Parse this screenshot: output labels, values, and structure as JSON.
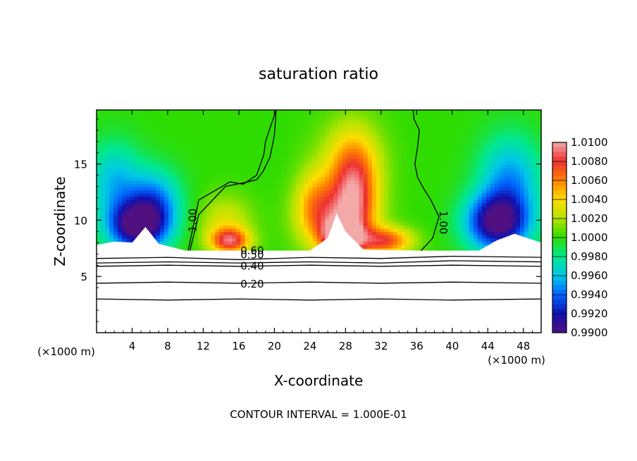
{
  "chart_data": {
    "type": "heatmap",
    "title": "saturation ratio",
    "xlabel": "X-coordinate",
    "ylabel": "Z-coordinate",
    "x_unit_left": "(×1000 m)",
    "x_unit_right": "(×1000 m)",
    "footer": "CONTOUR INTERVAL = 1.000E-01",
    "xlim": [
      0,
      50
    ],
    "ylim": [
      0,
      19.8
    ],
    "x_ticks": [
      "4",
      "8",
      "12",
      "16",
      "20",
      "24",
      "28",
      "32",
      "36",
      "40",
      "44",
      "48"
    ],
    "x_tick_values": [
      4,
      8,
      12,
      16,
      20,
      24,
      28,
      32,
      36,
      40,
      44,
      48
    ],
    "y_ticks": [
      "5",
      "10",
      "15"
    ],
    "y_tick_values": [
      5,
      10,
      15
    ],
    "colorbar": {
      "labels": [
        "1.0100",
        "1.0080",
        "1.0060",
        "1.0040",
        "1.0020",
        "1.0000",
        "0.9980",
        "0.9960",
        "0.9940",
        "0.9920",
        "0.9900"
      ],
      "values": [
        1.01,
        1.008,
        1.006,
        1.004,
        1.002,
        1.0,
        0.998,
        0.996,
        0.994,
        0.992,
        0.99
      ],
      "colors": [
        "#f4a9a9",
        "#ee3030",
        "#ff8000",
        "#ffdd00",
        "#b4e400",
        "#2edc00",
        "#00e890",
        "#00c8e8",
        "#0064ff",
        "#1010b0",
        "#501080"
      ]
    },
    "contours": [
      {
        "label": "1.00",
        "x": [
          10.5,
          11.5,
          14.5,
          17.0,
          18.0,
          18.7,
          19.5,
          20.0,
          20.2,
          19.0,
          18.8,
          18.0,
          16.5,
          15.0,
          11.5,
          10.3
        ],
        "y": [
          7.3,
          10.5,
          13.0,
          13.4,
          13.6,
          14.3,
          15.6,
          17.5,
          19.8,
          17.0,
          15.8,
          14.0,
          13.2,
          13.4,
          11.8,
          7.3
        ]
      },
      {
        "label": "1.00",
        "x": [
          36.5,
          37.8,
          38.5,
          37.6,
          36.8,
          36.1,
          35.8,
          36.1,
          36.3,
          35.7,
          35.6
        ],
        "y": [
          7.3,
          8.4,
          10.3,
          11.8,
          12.8,
          13.8,
          15.0,
          16.5,
          18.0,
          19.0,
          19.8
        ]
      },
      {
        "label": "0.60",
        "x": [
          0,
          8,
          16,
          24,
          32,
          40,
          50
        ],
        "y": [
          6.6,
          6.7,
          6.5,
          6.7,
          6.6,
          6.8,
          6.7
        ]
      },
      {
        "label": "0.50",
        "x": [
          0,
          8,
          16,
          24,
          32,
          40,
          50
        ],
        "y": [
          6.2,
          6.3,
          6.2,
          6.3,
          6.2,
          6.4,
          6.3
        ]
      },
      {
        "label": "0.40",
        "x": [
          0,
          8,
          16,
          24,
          32,
          40,
          50
        ],
        "y": [
          5.9,
          6.0,
          5.9,
          6.0,
          5.9,
          6.0,
          5.9
        ]
      },
      {
        "label": "0.20",
        "x": [
          0,
          8,
          16,
          24,
          32,
          40,
          50
        ],
        "y": [
          4.4,
          4.5,
          4.4,
          4.5,
          4.4,
          4.5,
          4.4
        ]
      },
      {
        "label": "",
        "x": [
          0,
          8,
          16,
          24,
          32,
          40,
          50
        ],
        "y": [
          3.0,
          2.9,
          3.0,
          2.9,
          3.0,
          2.9,
          3.0
        ]
      }
    ],
    "field_blobs": [
      {
        "x": 4.5,
        "z": 9.5,
        "value": 0.9905,
        "sx": 3.2,
        "sz": 2.2
      },
      {
        "x": 6.5,
        "z": 11.5,
        "value": 0.9945,
        "sx": 3.0,
        "sz": 3.0
      },
      {
        "x": 2.0,
        "z": 13.5,
        "value": 0.996,
        "sx": 3.0,
        "sz": 3.5
      },
      {
        "x": 45.0,
        "z": 9.8,
        "value": 0.9905,
        "sx": 3.5,
        "sz": 2.5
      },
      {
        "x": 46.5,
        "z": 13.5,
        "value": 0.995,
        "sx": 3.5,
        "sz": 4.0
      },
      {
        "x": 15.0,
        "z": 8.2,
        "value": 1.0075,
        "sx": 2.2,
        "sz": 1.1
      },
      {
        "x": 14.5,
        "z": 9.8,
        "value": 1.003,
        "sx": 3.0,
        "sz": 2.4
      },
      {
        "x": 27.0,
        "z": 10.0,
        "value": 1.005,
        "sx": 4.0,
        "sz": 3.0
      },
      {
        "x": 29.0,
        "z": 12.5,
        "value": 1.0065,
        "sx": 2.5,
        "sz": 4.5
      },
      {
        "x": 28.5,
        "z": 15.0,
        "value": 1.003,
        "sx": 3.8,
        "sz": 3.8
      },
      {
        "x": 24.5,
        "z": 11.5,
        "value": 1.0035,
        "sx": 2.2,
        "sz": 3.0
      },
      {
        "x": 32.5,
        "z": 8.2,
        "value": 1.007,
        "sx": 3.0,
        "sz": 1.2
      },
      {
        "x": 27.5,
        "z": 8.5,
        "value": 1.01,
        "sx": 2.0,
        "sz": 1.5
      }
    ]
  }
}
